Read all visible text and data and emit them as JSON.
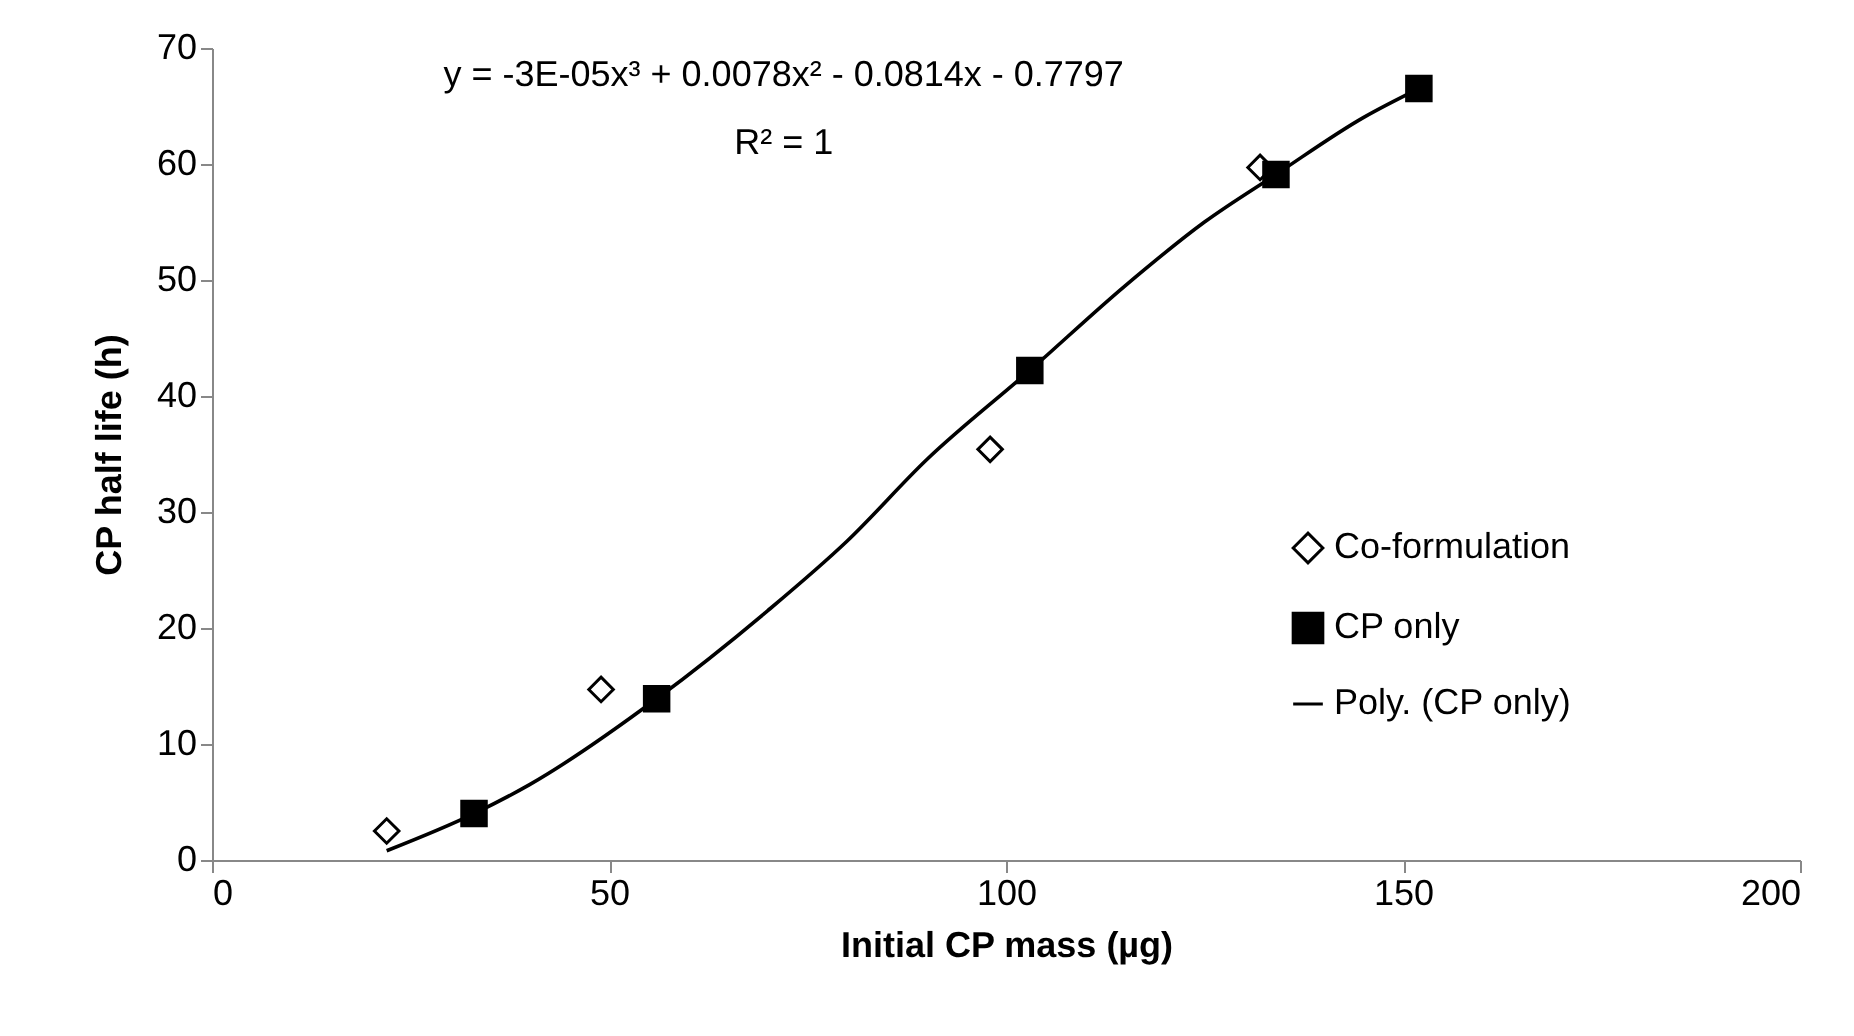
{
  "chart_data": {
    "type": "scatter",
    "xlabel": "Initial CP mass (µg)",
    "ylabel": "CP half life (h)",
    "xlim": [
      0,
      200
    ],
    "xticks": [
      0,
      50,
      100,
      150,
      200
    ],
    "ylim": [
      0,
      70
    ],
    "yticks": [
      0,
      10,
      20,
      30,
      40,
      50,
      60,
      70
    ],
    "grid": false,
    "legend": "bottom right",
    "annotations": [
      "y = -3E-05x³ + 0.0078x² - 0.0814x - 0.7797",
      "R² = 1"
    ],
    "series": [
      {
        "name": "Co-formulation",
        "marker": "diamond",
        "color": "#000000",
        "x": [
          22,
          49,
          98,
          132
        ],
        "values": [
          2.5,
          14.7,
          35.4,
          59.7
        ]
      },
      {
        "name": "CP only",
        "marker": "square",
        "color": "#000000",
        "x": [
          33,
          56,
          103,
          134,
          152
        ],
        "values": [
          4,
          13.9,
          42.2,
          59.1,
          66.5
        ]
      },
      {
        "name": "Poly. (CP only)",
        "type": "line",
        "marker": "none",
        "line_style": "solid",
        "color": "#000000",
        "x": [
          22,
          33,
          40,
          56,
          70,
          80,
          90,
          103,
          115,
          125,
          134,
          145,
          152
        ],
        "values": [
          0.8,
          4,
          6.5,
          13.9,
          21.5,
          27.5,
          34.5,
          42.2,
          49.5,
          55,
          59.1,
          64,
          66.5
        ]
      }
    ]
  }
}
